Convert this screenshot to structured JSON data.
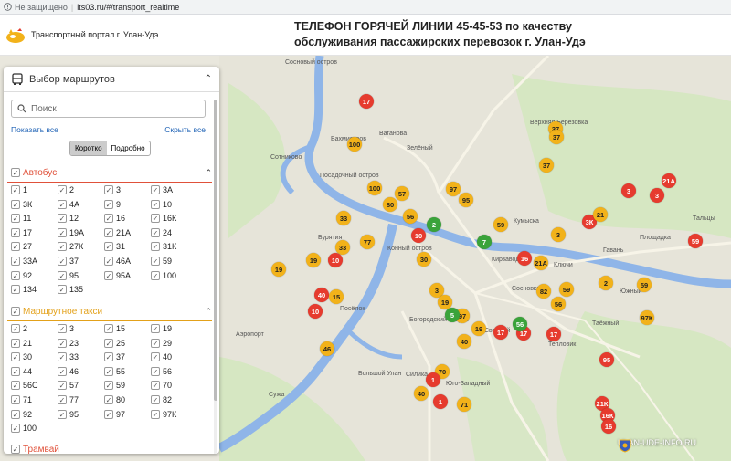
{
  "browser": {
    "security": "Не защищено",
    "url": "its03.ru/#/transport_realtime"
  },
  "header": {
    "portal_title": "Транспортный портал г. Улан-Удэ",
    "hotline_line1": "ТЕЛЕФОН ГОРЯЧЕЙ ЛИНИИ 45-45-53 по качеству",
    "hotline_line2": "обслуживания пассажирских перевозок г. Улан-Удэ"
  },
  "panel": {
    "title": "Выбор маршрутов",
    "search_placeholder": "Поиск",
    "show_all": "Показать все",
    "hide_all": "Скрыть все",
    "toggle_short": "Коротко",
    "toggle_detail": "Подробно",
    "sections": [
      {
        "name": "Автобус",
        "color": "#e0513a",
        "routes": [
          "1",
          "2",
          "3",
          "3А",
          "3К",
          "4А",
          "9",
          "10",
          "11",
          "12",
          "16",
          "16К",
          "17",
          "19А",
          "21А",
          "24",
          "27",
          "27К",
          "31",
          "31К",
          "33А",
          "37",
          "46А",
          "59",
          "92",
          "95",
          "95А",
          "100",
          "134",
          "135"
        ]
      },
      {
        "name": "Маршрутное такси",
        "color": "#e3a11a",
        "routes": [
          "2",
          "3",
          "15",
          "19",
          "21",
          "23",
          "25",
          "29",
          "30",
          "33",
          "37",
          "40",
          "44",
          "46",
          "55",
          "56",
          "56С",
          "57",
          "59",
          "70",
          "71",
          "77",
          "80",
          "82",
          "92",
          "95",
          "97",
          "97К",
          "100"
        ]
      },
      {
        "name": "Трамвай",
        "color": "#e0513a",
        "routes": []
      }
    ]
  },
  "map": {
    "places": [
      "Сосновый остров",
      "Ваганова",
      "Верхняя Березовка",
      "Вахмистров",
      "Сотниково",
      "Посадочный остров",
      "Зелёный",
      "Кумыска",
      "Бурятия",
      "Конный остров",
      "Кирзавод",
      "Гавань",
      "Площадка",
      "Тальцы",
      "Сосновка",
      "Посёлок",
      "Аэропорт",
      "Таёжный",
      "Светлый",
      "Богородский остров",
      "Силика",
      "Юго-Западный",
      "Большой Улан",
      "Сужа",
      "Ключи",
      "Тепловик",
      "Южный"
    ],
    "markers": [
      {
        "label": "17",
        "c": "r"
      },
      {
        "label": "37",
        "c": "y"
      },
      {
        "label": "37",
        "c": "y"
      },
      {
        "label": "100",
        "c": "y"
      },
      {
        "label": "37",
        "c": "y"
      },
      {
        "label": "3",
        "c": "r"
      },
      {
        "label": "21А",
        "c": "r"
      },
      {
        "label": "3",
        "c": "r"
      },
      {
        "label": "100",
        "c": "y"
      },
      {
        "label": "57",
        "c": "y"
      },
      {
        "label": "97",
        "c": "y"
      },
      {
        "label": "95",
        "c": "y"
      },
      {
        "label": "80",
        "c": "y"
      },
      {
        "label": "56",
        "c": "y"
      },
      {
        "label": "2",
        "c": "g"
      },
      {
        "label": "33",
        "c": "y"
      },
      {
        "label": "33",
        "c": "y"
      },
      {
        "label": "77",
        "c": "y"
      },
      {
        "label": "10",
        "c": "r"
      },
      {
        "label": "19",
        "c": "y"
      },
      {
        "label": "19",
        "c": "y"
      },
      {
        "label": "40",
        "c": "r"
      },
      {
        "label": "15",
        "c": "y"
      },
      {
        "label": "10",
        "c": "r"
      },
      {
        "label": "59",
        "c": "y"
      },
      {
        "label": "3К",
        "c": "r"
      },
      {
        "label": "21",
        "c": "y"
      },
      {
        "label": "3",
        "c": "y"
      },
      {
        "label": "59",
        "c": "r"
      },
      {
        "label": "59",
        "c": "y"
      },
      {
        "label": "2",
        "c": "y"
      },
      {
        "label": "97К",
        "c": "y"
      },
      {
        "label": "46",
        "c": "y"
      },
      {
        "label": "97",
        "c": "y"
      },
      {
        "label": "19",
        "c": "y"
      },
      {
        "label": "40",
        "c": "y"
      },
      {
        "label": "70",
        "c": "y"
      },
      {
        "label": "1",
        "c": "r"
      },
      {
        "label": "40",
        "c": "y"
      },
      {
        "label": "71",
        "c": "y"
      },
      {
        "label": "1",
        "c": "r"
      },
      {
        "label": "17",
        "c": "r"
      },
      {
        "label": "17",
        "c": "r"
      },
      {
        "label": "17",
        "c": "r"
      },
      {
        "label": "95",
        "c": "r"
      },
      {
        "label": "21К",
        "c": "r"
      },
      {
        "label": "16К",
        "c": "r"
      },
      {
        "label": "16",
        "c": "r"
      },
      {
        "label": "56",
        "c": "g"
      },
      {
        "label": "82",
        "c": "y"
      },
      {
        "label": "30",
        "c": "y"
      },
      {
        "label": "16",
        "c": "r"
      },
      {
        "label": "21А",
        "c": "y"
      },
      {
        "label": "59",
        "c": "y"
      },
      {
        "label": "5",
        "c": "g"
      },
      {
        "label": "56",
        "c": "y"
      },
      {
        "label": "3",
        "c": "y"
      },
      {
        "label": "19",
        "c": "y"
      },
      {
        "label": "10",
        "c": "r"
      },
      {
        "label": "7",
        "c": "g"
      }
    ]
  },
  "watermark": "ULAN-UDE-INFO.RU",
  "colors": {
    "bus_red": "#e63b2e",
    "taxi_yellow": "#f2b21a",
    "tram_green": "#3aa33a",
    "river": "#8fb5e8",
    "park": "#cde6b5"
  }
}
